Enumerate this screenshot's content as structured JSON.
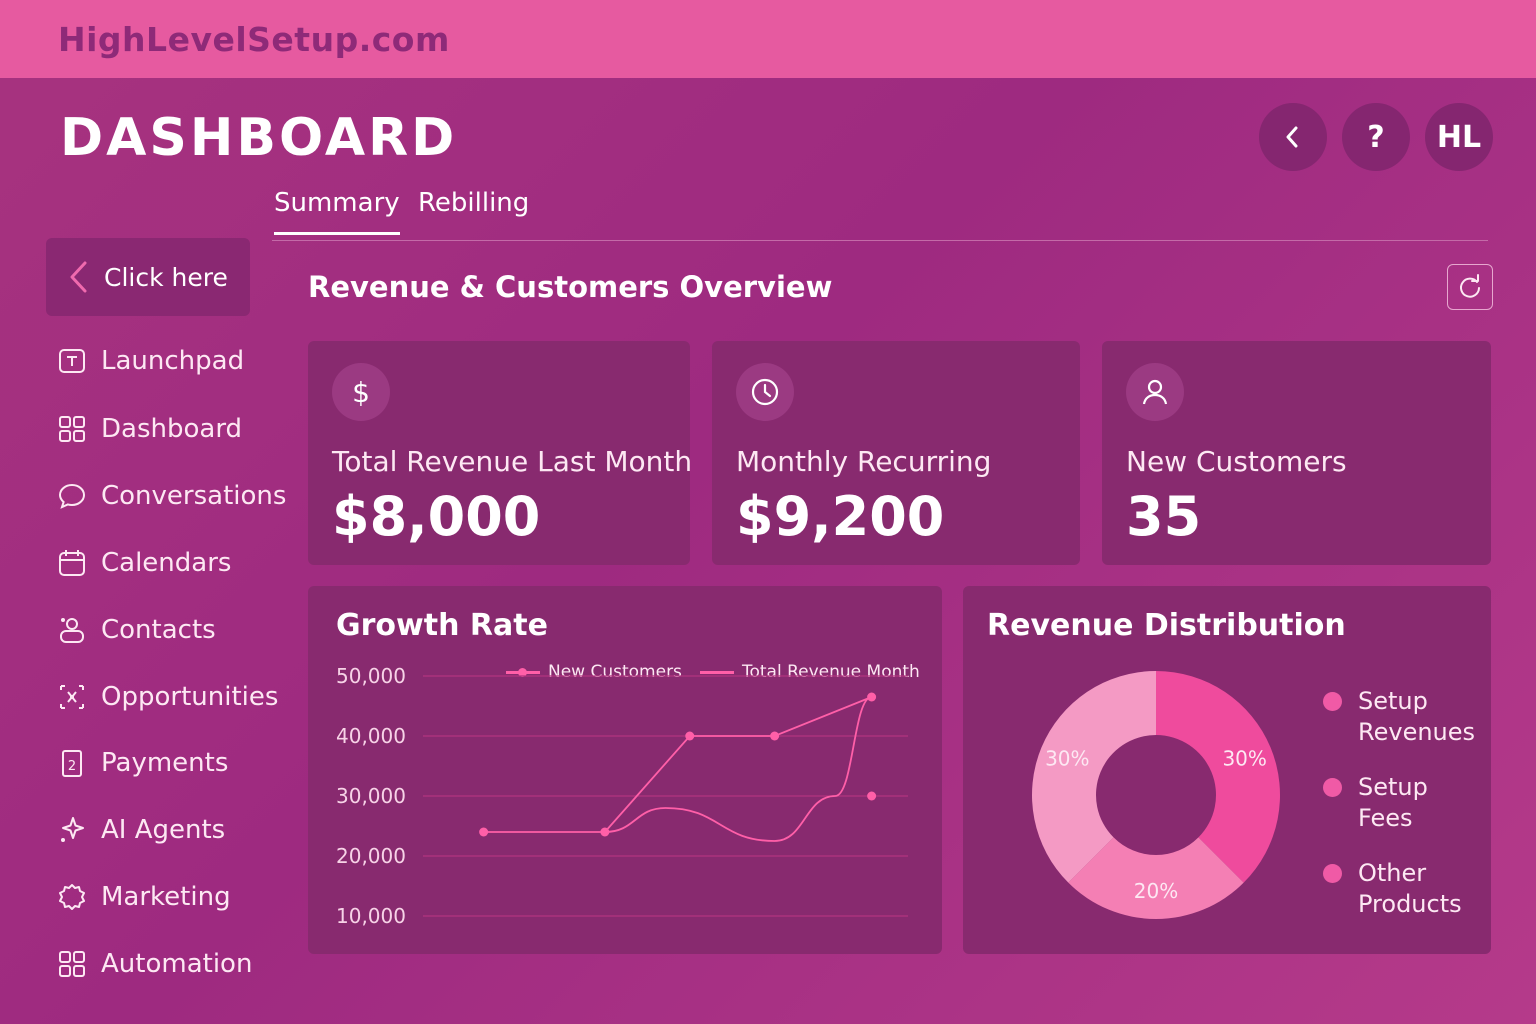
{
  "brand": "HighLevelSetup.com",
  "page_title": "DASHBOARD",
  "header_buttons": {
    "back_icon": "chevron-left-icon",
    "help_label": "?",
    "avatar_label": "HL"
  },
  "tabs": [
    {
      "label": "Summary",
      "active": true
    },
    {
      "label": "Rebilling",
      "active": false
    }
  ],
  "sidebar": {
    "click_here": "Click here",
    "items": [
      {
        "label": "Launchpad",
        "icon": "launchpad-icon"
      },
      {
        "label": "Dashboard",
        "icon": "grid-icon"
      },
      {
        "label": "Conversations",
        "icon": "chat-bubble-icon"
      },
      {
        "label": "Calendars",
        "icon": "calendar-icon"
      },
      {
        "label": "Contacts",
        "icon": "contacts-icon"
      },
      {
        "label": "Opportunities",
        "icon": "opportunities-icon"
      },
      {
        "label": "Payments",
        "icon": "payments-icon"
      },
      {
        "label": "AI Agents",
        "icon": "sparkle-icon"
      },
      {
        "label": "Marketing",
        "icon": "badge-icon"
      },
      {
        "label": "Automation",
        "icon": "grid-icon"
      }
    ]
  },
  "section_title": "Revenue & Customers Overview",
  "stats": [
    {
      "label": "Total Revenue Last Month",
      "value": "$8,000",
      "icon": "dollar-icon"
    },
    {
      "label": "Monthly Recurring",
      "value": "$9,200",
      "icon": "clock-icon"
    },
    {
      "label": "New Customers",
      "value": "35",
      "icon": "user-icon"
    }
  ],
  "growth_panel_title": "Growth Rate",
  "distribution_panel_title": "Revenue Distribution",
  "colors": {
    "accent": "#e65aa0",
    "card": "#882a6f",
    "line": "#ff5fa8"
  },
  "chart_data": [
    {
      "type": "line",
      "title": "Growth Rate",
      "ylim": [
        5000,
        55000
      ],
      "yticks": [
        "50,000",
        "40,000",
        "30,000",
        "20,000",
        "10,000"
      ],
      "ytick_values": [
        50000,
        40000,
        30000,
        20000,
        10000
      ],
      "grid": true,
      "legend": "top-right",
      "series": [
        {
          "name": "New Customers",
          "marker": true,
          "x": [
            1,
            3,
            4.4,
            5.8,
            7.4
          ],
          "values": [
            24000,
            24000,
            40000,
            40000,
            46500
          ]
        },
        {
          "name": "Total Revenue Month",
          "marker": false,
          "x": [
            3,
            4,
            5.8,
            6.8,
            7.4
          ],
          "values": [
            24000,
            28000,
            22500,
            30000,
            46500
          ]
        }
      ],
      "extra_points": [
        {
          "x": 7.4,
          "value": 30000
        }
      ]
    },
    {
      "type": "pie",
      "title": "Revenue Distribution",
      "donut": true,
      "categories": [
        "Setup Revenues",
        "Setup Fees",
        "Other Products"
      ],
      "values": [
        30,
        20,
        30
      ],
      "slice_labels": [
        "30%",
        "20%",
        "30%"
      ],
      "colors": [
        "#ef4b9d",
        "#f47fb4",
        "#f49ac4"
      ]
    }
  ]
}
